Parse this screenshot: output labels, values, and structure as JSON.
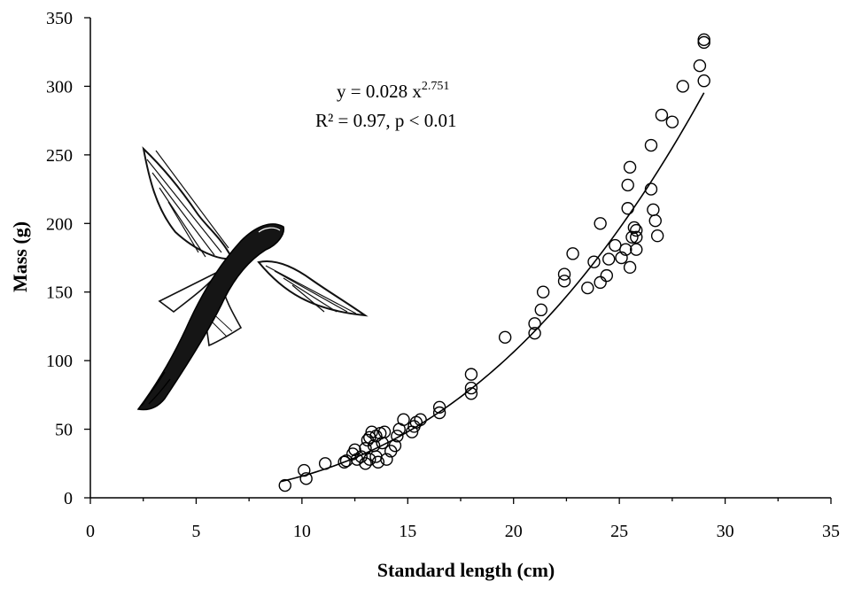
{
  "chart_data": {
    "type": "scatter",
    "title": "",
    "xlabel": "Standard length (cm)",
    "ylabel": "Mass (g)",
    "xlim": [
      0,
      35
    ],
    "ylim": [
      0,
      350
    ],
    "x_ticks": [
      "0",
      "5",
      "10",
      "15",
      "20",
      "25",
      "30",
      "35"
    ],
    "y_ticks": [
      "0",
      "50",
      "100",
      "150",
      "200",
      "250",
      "300",
      "350"
    ],
    "grid": false,
    "legend": "none",
    "annotation": {
      "equation_prefix": "y = 0.028 x",
      "equation_exponent": "2.751",
      "stats": "R² = 0.97, p < 0.01"
    },
    "fit": {
      "a": 0.028,
      "b": 2.751,
      "x_range": [
        9,
        29
      ]
    },
    "points": [
      [
        9.2,
        9
      ],
      [
        10.1,
        20
      ],
      [
        10.2,
        14
      ],
      [
        11.1,
        25
      ],
      [
        12.0,
        26
      ],
      [
        12.1,
        27
      ],
      [
        12.4,
        32
      ],
      [
        12.5,
        35
      ],
      [
        12.6,
        28
      ],
      [
        12.8,
        30
      ],
      [
        13.0,
        25
      ],
      [
        13.0,
        36
      ],
      [
        13.1,
        42
      ],
      [
        13.2,
        44
      ],
      [
        13.2,
        28
      ],
      [
        13.3,
        48
      ],
      [
        13.4,
        38
      ],
      [
        13.5,
        30
      ],
      [
        13.5,
        45
      ],
      [
        13.6,
        26
      ],
      [
        13.7,
        47
      ],
      [
        13.8,
        40
      ],
      [
        13.9,
        48
      ],
      [
        14.0,
        28
      ],
      [
        14.2,
        34
      ],
      [
        14.4,
        38
      ],
      [
        14.5,
        45
      ],
      [
        14.6,
        50
      ],
      [
        14.8,
        57
      ],
      [
        15.2,
        48
      ],
      [
        15.3,
        52
      ],
      [
        15.4,
        55
      ],
      [
        15.6,
        57
      ],
      [
        16.5,
        62
      ],
      [
        16.5,
        66
      ],
      [
        18.0,
        76
      ],
      [
        18.0,
        80
      ],
      [
        18.0,
        90
      ],
      [
        19.6,
        117
      ],
      [
        21.0,
        120
      ],
      [
        21.0,
        127
      ],
      [
        21.3,
        137
      ],
      [
        21.4,
        150
      ],
      [
        22.4,
        158
      ],
      [
        22.4,
        163
      ],
      [
        22.8,
        178
      ],
      [
        23.5,
        153
      ],
      [
        23.8,
        172
      ],
      [
        24.1,
        157
      ],
      [
        24.1,
        200
      ],
      [
        24.4,
        162
      ],
      [
        24.5,
        174
      ],
      [
        24.8,
        184
      ],
      [
        25.1,
        175
      ],
      [
        25.3,
        181
      ],
      [
        25.4,
        211
      ],
      [
        25.4,
        228
      ],
      [
        25.5,
        241
      ],
      [
        25.5,
        168
      ],
      [
        25.6,
        190
      ],
      [
        25.7,
        197
      ],
      [
        25.8,
        181
      ],
      [
        25.8,
        190
      ],
      [
        25.8,
        195
      ],
      [
        26.5,
        257
      ],
      [
        26.5,
        225
      ],
      [
        26.6,
        210
      ],
      [
        26.7,
        202
      ],
      [
        26.8,
        191
      ],
      [
        27.0,
        279
      ],
      [
        27.5,
        274
      ],
      [
        28.0,
        300
      ],
      [
        28.8,
        315
      ],
      [
        29.0,
        304
      ],
      [
        29.0,
        332
      ],
      [
        29.0,
        334
      ]
    ]
  }
}
